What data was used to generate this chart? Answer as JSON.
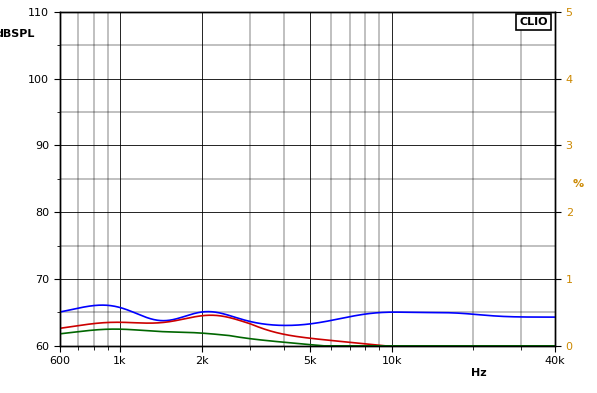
{
  "title": "",
  "ylabel_left": "dBSPL",
  "ylabel_right": "%",
  "xlabel": "Hz",
  "xlim": [
    600,
    40000
  ],
  "ylim_left": [
    60,
    110
  ],
  "ylim_right": [
    0,
    5
  ],
  "yticks_left": [
    60,
    70,
    80,
    90,
    100,
    110
  ],
  "yticks_right": [
    0,
    1,
    2,
    3,
    4,
    5
  ],
  "xtick_vals": [
    600,
    1000,
    2000,
    5000,
    10000,
    40000
  ],
  "xtick_labels": [
    "600",
    "1k",
    "2k",
    "5k",
    "10k",
    "40k"
  ],
  "clio_label": "CLIO",
  "background_color": "#ffffff",
  "grid_color": "#000000",
  "label_color_left": "#000000",
  "label_color_right": "#cc8800",
  "tick_color_left": "#000000",
  "tick_color_right": "#cc8800",
  "line_colors": [
    "#0000ff",
    "#cc0000",
    "#006600"
  ],
  "line_width": 1.2
}
